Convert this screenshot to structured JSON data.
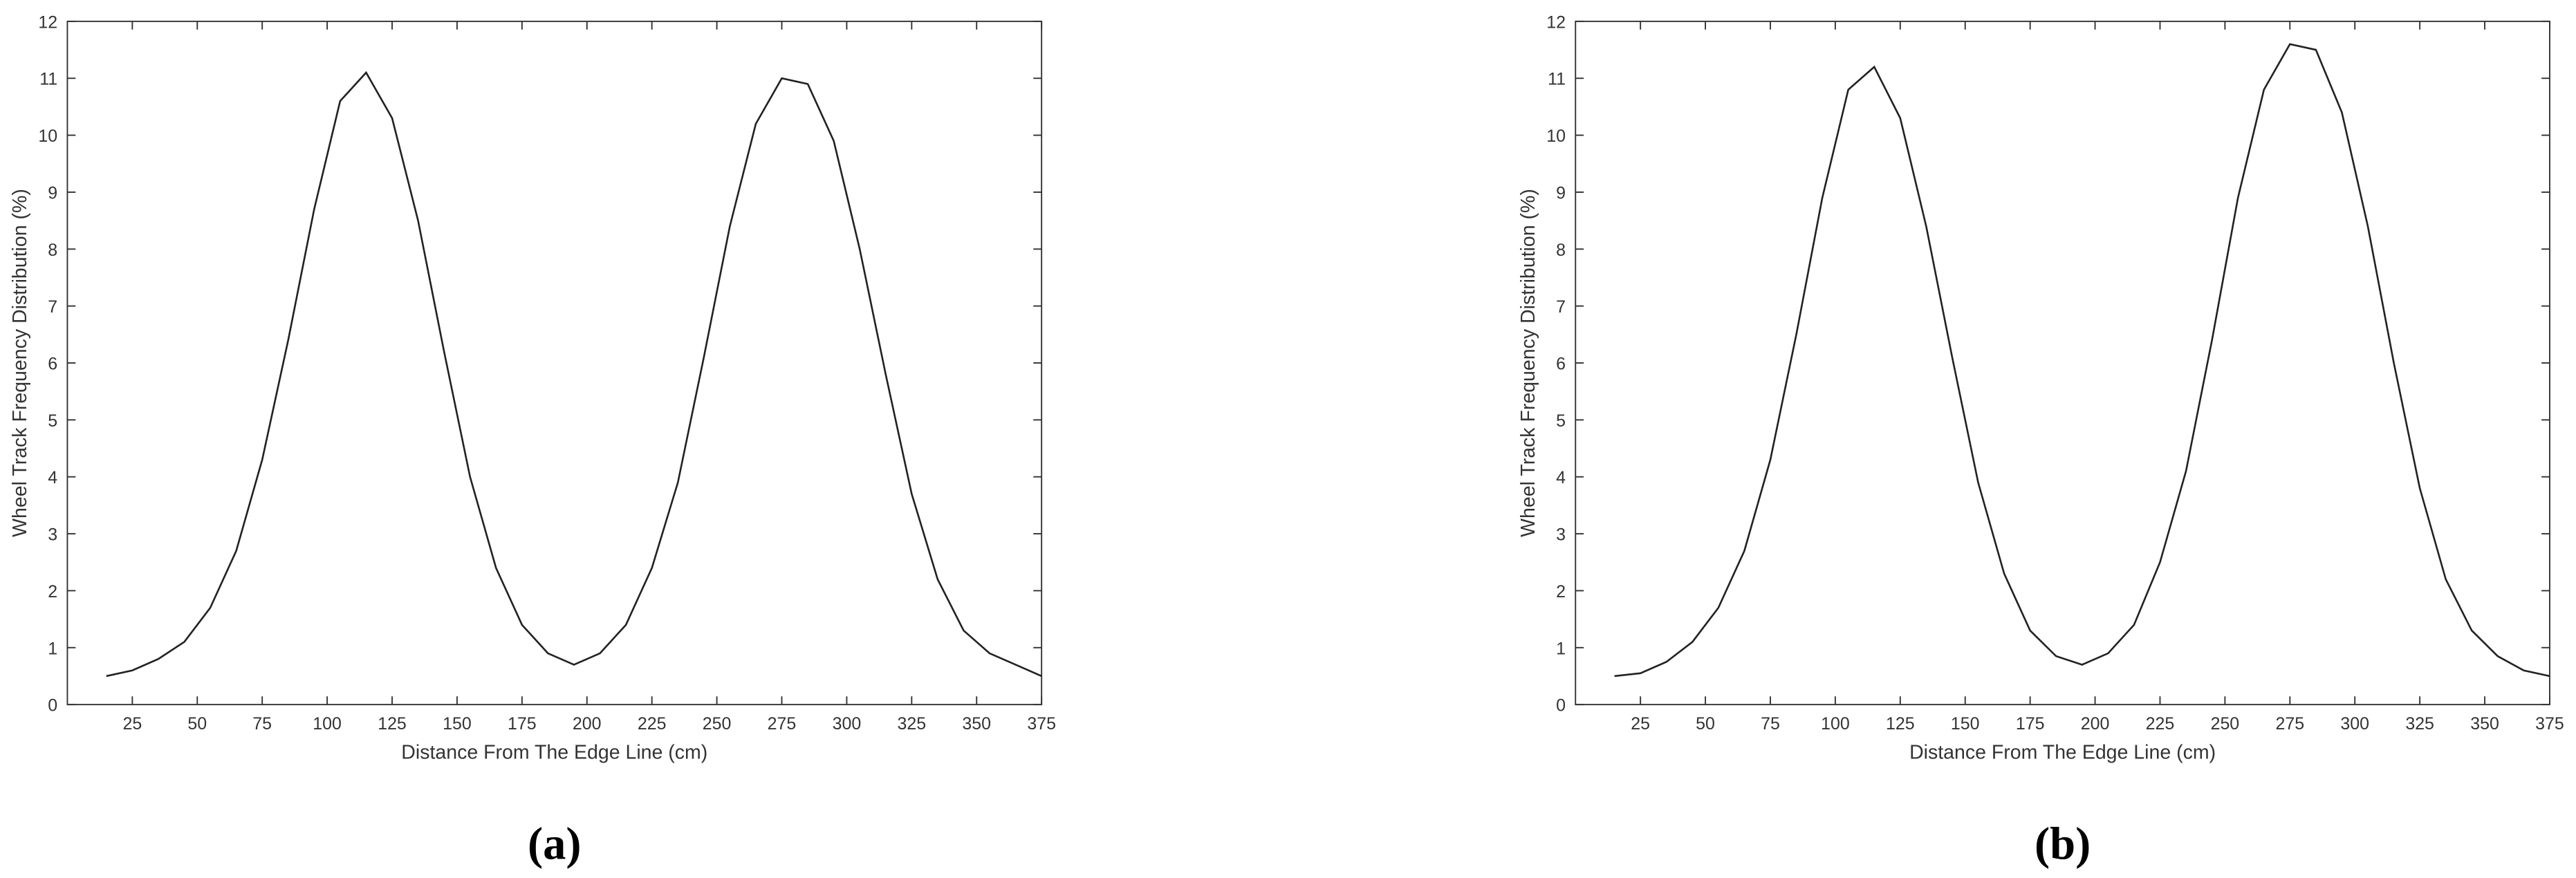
{
  "chart_data": [
    {
      "type": "line",
      "label": "(a)",
      "xlabel": "Distance From The Edge Line (cm)",
      "ylabel": "Wheel Track Frequency Distribution (%)",
      "xlim": [
        0,
        375
      ],
      "ylim": [
        0,
        12
      ],
      "xticks": [
        25,
        50,
        75,
        100,
        125,
        150,
        175,
        200,
        225,
        250,
        275,
        300,
        325,
        350,
        375
      ],
      "yticks": [
        0,
        1,
        2,
        3,
        4,
        5,
        6,
        7,
        8,
        9,
        10,
        11,
        12
      ],
      "x": [
        15,
        25,
        35,
        45,
        55,
        65,
        75,
        85,
        95,
        105,
        115,
        125,
        135,
        145,
        155,
        165,
        175,
        185,
        195,
        205,
        215,
        225,
        235,
        245,
        255,
        265,
        275,
        285,
        295,
        305,
        315,
        325,
        335,
        345,
        355,
        365,
        375
      ],
      "series": [
        {
          "color": "#222222",
          "values": [
            0.5,
            0.6,
            0.8,
            1.1,
            1.7,
            2.7,
            4.3,
            6.4,
            8.7,
            10.6,
            11.1,
            10.3,
            8.5,
            6.2,
            4.0,
            2.4,
            1.4,
            0.9,
            0.7,
            0.9,
            1.4,
            2.4,
            3.9,
            6.1,
            8.4,
            10.2,
            11.0,
            10.9,
            9.9,
            8.0,
            5.8,
            3.7,
            2.2,
            1.3,
            0.9,
            0.7,
            0.5
          ]
        }
      ]
    },
    {
      "type": "line",
      "label": "(b)",
      "xlabel": "Distance From The Edge Line (cm)",
      "ylabel": "Wheel Track Frequency Distribution (%)",
      "xlim": [
        0,
        375
      ],
      "ylim": [
        0,
        12
      ],
      "xticks": [
        25,
        50,
        75,
        100,
        125,
        150,
        175,
        200,
        225,
        250,
        275,
        300,
        325,
        350,
        375
      ],
      "yticks": [
        0,
        1,
        2,
        3,
        4,
        5,
        6,
        7,
        8,
        9,
        10,
        11,
        12
      ],
      "x": [
        15,
        25,
        35,
        45,
        55,
        65,
        75,
        85,
        95,
        105,
        115,
        125,
        135,
        145,
        155,
        165,
        175,
        185,
        195,
        205,
        215,
        225,
        235,
        245,
        255,
        265,
        275,
        285,
        295,
        305,
        315,
        325,
        335,
        345,
        355,
        365,
        375
      ],
      "series": [
        {
          "color": "#222222",
          "values": [
            0.5,
            0.55,
            0.75,
            1.1,
            1.7,
            2.7,
            4.3,
            6.5,
            8.9,
            10.8,
            11.2,
            10.3,
            8.4,
            6.1,
            3.9,
            2.3,
            1.3,
            0.85,
            0.7,
            0.9,
            1.4,
            2.5,
            4.1,
            6.4,
            8.9,
            10.8,
            11.6,
            11.5,
            10.4,
            8.4,
            6.0,
            3.8,
            2.2,
            1.3,
            0.85,
            0.6,
            0.5
          ]
        }
      ]
    }
  ]
}
